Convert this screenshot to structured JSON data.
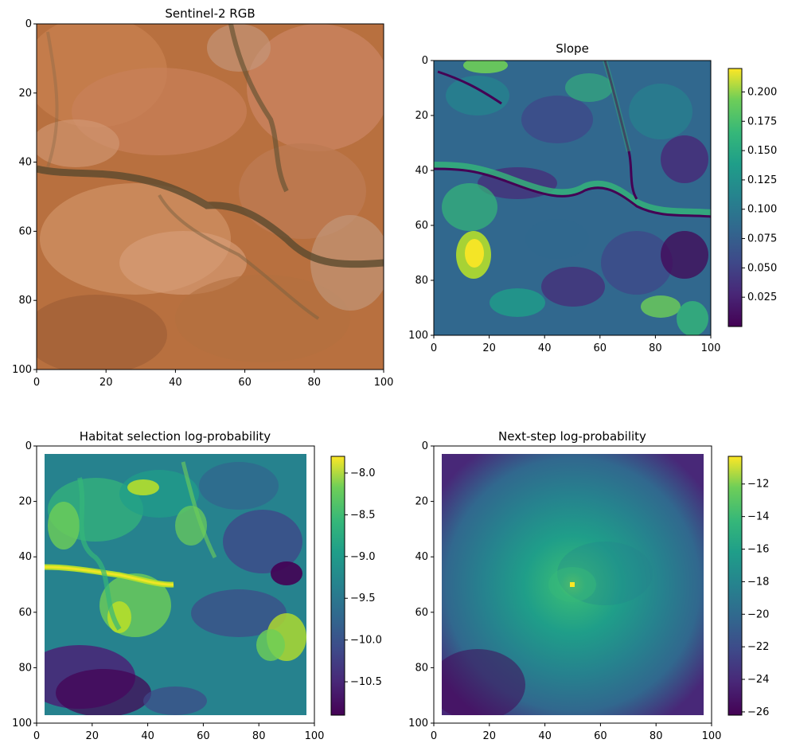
{
  "figure": {
    "panels": [
      {
        "title": "Sentinel-2 RGB"
      },
      {
        "title": "Slope"
      },
      {
        "title": "Habitat selection log-probability"
      },
      {
        "title": "Next-step log-probability"
      }
    ]
  },
  "chart_data": [
    {
      "type": "heatmap",
      "title": "Sentinel-2 RGB",
      "xlim": [
        0,
        100
      ],
      "ylim": [
        100,
        0
      ],
      "xticks": [
        0,
        20,
        40,
        60,
        80,
        100
      ],
      "yticks": [
        0,
        20,
        40,
        60,
        80,
        100
      ],
      "colormap": "rgb",
      "colorbar": null,
      "colors": {
        "base": "#b8703f",
        "light": "#d9a27a",
        "dark": "#5a4a30",
        "accent": "#e0743a"
      }
    },
    {
      "type": "heatmap",
      "title": "Slope",
      "xlim": [
        0,
        100
      ],
      "ylim": [
        100,
        0
      ],
      "xticks": [
        0,
        20,
        40,
        60,
        80,
        100
      ],
      "yticks": [
        0,
        20,
        40,
        60,
        80,
        100
      ],
      "colormap": "viridis",
      "colorbar": {
        "range": [
          0.0,
          0.22
        ],
        "ticks": [
          "0.025",
          "0.050",
          "0.075",
          "0.100",
          "0.125",
          "0.150",
          "0.175",
          "0.200"
        ],
        "tick_values": [
          0.025,
          0.05,
          0.075,
          0.1,
          0.125,
          0.15,
          0.175,
          0.2
        ]
      }
    },
    {
      "type": "heatmap",
      "title": "Habitat selection log-probability",
      "xlim": [
        0,
        100
      ],
      "ylim": [
        100,
        0
      ],
      "data_extent": [
        3,
        97
      ],
      "xticks": [
        0,
        20,
        40,
        60,
        80,
        100
      ],
      "yticks": [
        0,
        20,
        40,
        60,
        80,
        100
      ],
      "colormap": "viridis",
      "colorbar": {
        "range": [
          -10.9,
          -7.8
        ],
        "ticks": [
          "−8.0",
          "−8.5",
          "−9.0",
          "−9.5",
          "−10.0",
          "−10.5"
        ],
        "tick_values": [
          -8.0,
          -8.5,
          -9.0,
          -9.5,
          -10.0,
          -10.5
        ]
      }
    },
    {
      "type": "heatmap",
      "title": "Next-step log-probability",
      "xlim": [
        0,
        100
      ],
      "ylim": [
        100,
        0
      ],
      "data_extent": [
        3,
        97
      ],
      "peak": {
        "x": 50,
        "y": 50
      },
      "xticks": [
        0,
        20,
        40,
        60,
        80,
        100
      ],
      "yticks": [
        0,
        20,
        40,
        60,
        80,
        100
      ],
      "colormap": "viridis",
      "colorbar": {
        "range": [
          -26.2,
          -10.3
        ],
        "ticks": [
          "−12",
          "−14",
          "−16",
          "−18",
          "−20",
          "−22",
          "−24",
          "−26"
        ],
        "tick_values": [
          -12,
          -14,
          -16,
          -18,
          -20,
          -22,
          -24,
          -26
        ]
      }
    }
  ]
}
